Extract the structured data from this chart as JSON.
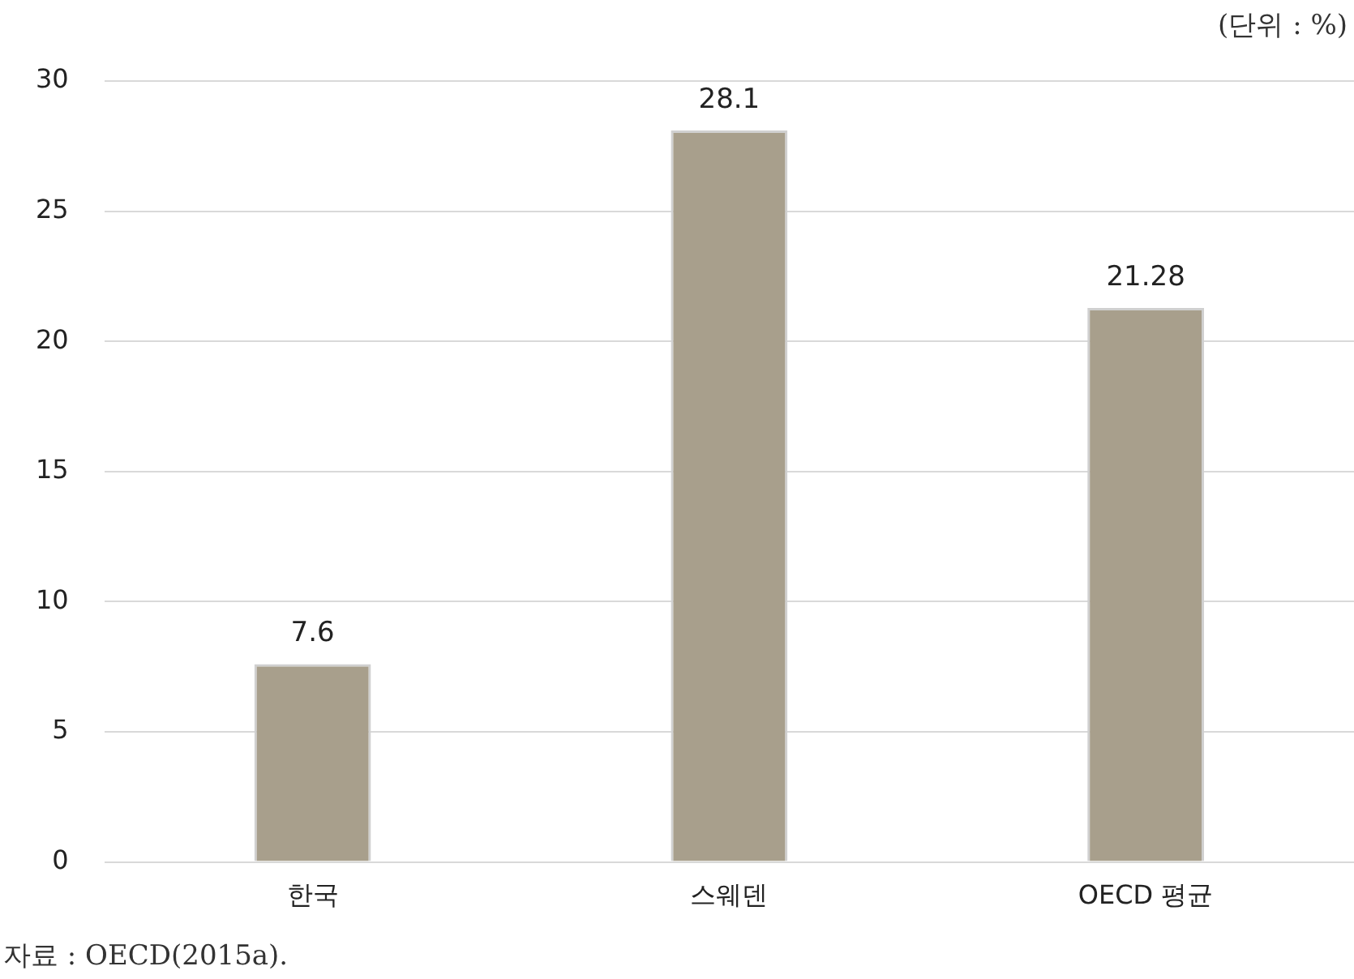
{
  "chart_data": {
    "type": "bar",
    "categories": [
      "한국",
      "스웨덴",
      "OECD 평균"
    ],
    "values": [
      7.6,
      28.1,
      21.28
    ],
    "color": "#a89f8c",
    "ylim": [
      0,
      30
    ],
    "yticks": [
      0,
      5,
      10,
      15,
      20,
      25,
      30
    ],
    "grid": "y",
    "data_labels": true,
    "legend": false,
    "annotations": [
      "(단위 : %)",
      "자료 : OECD(2015a)."
    ]
  }
}
